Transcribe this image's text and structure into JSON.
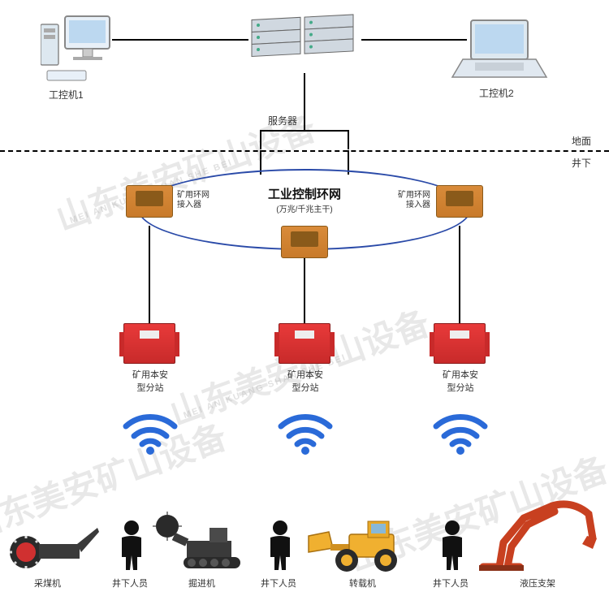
{
  "top": {
    "pc1_label": "工控机1",
    "pc2_label": "工控机2",
    "server_label": "服务器"
  },
  "boundary": {
    "above": "地面",
    "below": "井下"
  },
  "ring": {
    "title": "工业控制环网",
    "subtitle": "(万兆/千兆主干)",
    "border_color": "#2a4aa8",
    "access_label": "矿用环网\n接入器"
  },
  "substations": {
    "label": "矿用本安\n型分站",
    "box_color": "#e03030"
  },
  "wifi_color": "#2a6ad8",
  "equipment": [
    {
      "name": "采煤机"
    },
    {
      "name": "井下人员"
    },
    {
      "name": "掘进机"
    },
    {
      "name": "井下人员"
    },
    {
      "name": "转载机"
    },
    {
      "name": "井下人员"
    },
    {
      "name": "液压支架"
    }
  ],
  "watermark": {
    "main": "山东美安矿山设备",
    "sub": "MEI AN KUANG SHAN SHE BEI"
  },
  "colors": {
    "line": "#000000",
    "bg": "#ffffff",
    "text": "#333333",
    "orange_box": "#d98b3a",
    "red_box": "#e83a3a",
    "yellow_vehicle": "#f0b030",
    "dark_vehicle": "#3a3a3a"
  }
}
